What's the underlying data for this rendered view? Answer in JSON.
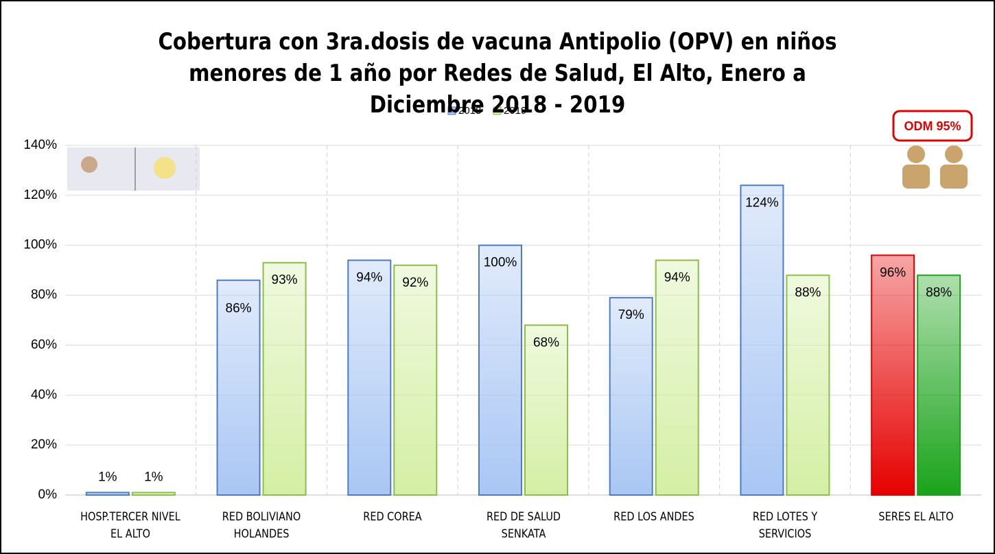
{
  "chart_data": {
    "type": "bar",
    "title": "Cobertura con 3ra.dosis de vacuna Antipolio (OPV) en niños menores de 1 año por Redes de Salud, El Alto, Enero a Diciembre 2018 - 2019",
    "categories": [
      "HOSP.TERCER NIVEL EL ALTO",
      "RED BOLIVIANO HOLANDES",
      "RED COREA",
      "RED DE SALUD SENKATA",
      "RED LOS ANDES",
      "RED LOTES Y SERVICIOS",
      "SERES EL ALTO"
    ],
    "series": [
      {
        "name": "2018",
        "color": "#a9c6f4",
        "colors": [
          "#a9c6f4",
          "#a9c6f4",
          "#a9c6f4",
          "#a9c6f4",
          "#a9c6f4",
          "#a9c6f4",
          "#e60000"
        ],
        "values": [
          1,
          86,
          94,
          100,
          79,
          124,
          96
        ],
        "value_labels": [
          "1%",
          "86%",
          "94%",
          "100%",
          "79%",
          "124%",
          "96%"
        ]
      },
      {
        "name": "2019",
        "color": "#d4efa4",
        "colors": [
          "#d4efa4",
          "#d4efa4",
          "#d4efa4",
          "#d4efa4",
          "#d4efa4",
          "#d4efa4",
          "#1aa31a"
        ],
        "values": [
          1,
          93,
          92,
          68,
          94,
          88,
          88
        ],
        "value_labels": [
          "1%",
          "93%",
          "92%",
          "68%",
          "94%",
          "88%",
          "88%"
        ]
      }
    ],
    "annotation": "ODM 95%",
    "ylim": [
      0,
      140
    ],
    "yticks": [
      {
        "value": 0,
        "label": "0%"
      },
      {
        "value": 20,
        "label": "20%"
      },
      {
        "value": 40,
        "label": "40%"
      },
      {
        "value": 60,
        "label": "60%"
      },
      {
        "value": 80,
        "label": "80%"
      },
      {
        "value": 100,
        "label": "100%"
      },
      {
        "value": 120,
        "label": "120%"
      },
      {
        "value": 140,
        "label": "140%"
      }
    ],
    "grid": true,
    "legend": "top"
  }
}
